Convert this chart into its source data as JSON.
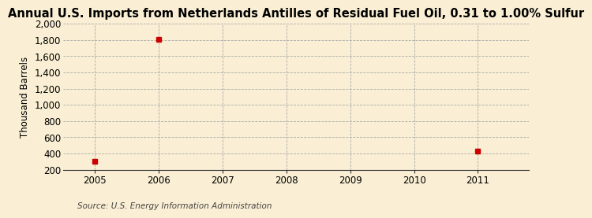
{
  "title": "Annual U.S. Imports from Netherlands Antilles of Residual Fuel Oil, 0.31 to 1.00% Sulfur",
  "ylabel": "Thousand Barrels",
  "source": "Source: U.S. Energy Information Administration",
  "x_years": [
    2005,
    2006,
    2007,
    2008,
    2009,
    2010,
    2011
  ],
  "data_points": [
    {
      "year": 2005,
      "value": 306
    },
    {
      "year": 2006,
      "value": 1807
    },
    {
      "year": 2011,
      "value": 432
    }
  ],
  "ylim": [
    200,
    2000
  ],
  "yticks": [
    200,
    400,
    600,
    800,
    1000,
    1200,
    1400,
    1600,
    1800,
    2000
  ],
  "xlim": [
    2004.5,
    2011.8
  ],
  "marker_color": "#cc0000",
  "marker_size": 5,
  "background_color": "#faefd4",
  "grid_color": "#aaaaaa",
  "title_fontsize": 10.5,
  "label_fontsize": 8.5,
  "tick_fontsize": 8.5,
  "source_fontsize": 7.5
}
